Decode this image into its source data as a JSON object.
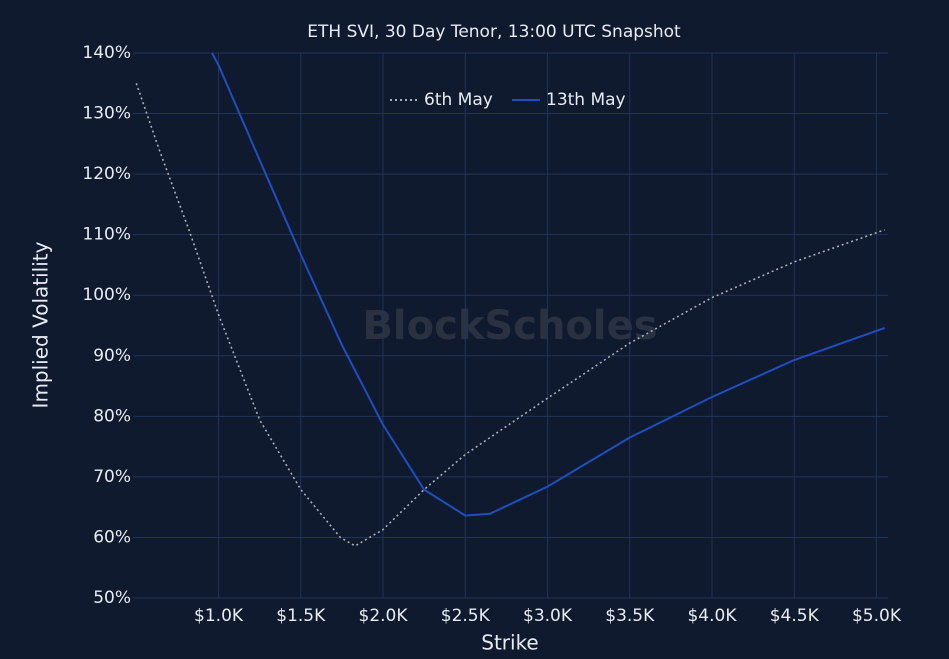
{
  "chart_data": {
    "type": "line",
    "title": "ETH SVI, 30 Day Tenor, 13:00 UTC Snapshot",
    "watermark": "BlockScholes",
    "x_label": "Strike",
    "y_label": "Implied Volatility",
    "xlim": [
      480,
      5070
    ],
    "ylim": [
      50,
      140
    ],
    "xticks": [
      {
        "value": 1000,
        "label": "$1.0K"
      },
      {
        "value": 1500,
        "label": "$1.5K"
      },
      {
        "value": 2000,
        "label": "$2.0K"
      },
      {
        "value": 2500,
        "label": "$2.5K"
      },
      {
        "value": 3000,
        "label": "$3.0K"
      },
      {
        "value": 3500,
        "label": "$3.5K"
      },
      {
        "value": 4000,
        "label": "$4.0K"
      },
      {
        "value": 4500,
        "label": "$4.5K"
      },
      {
        "value": 5000,
        "label": "$5.0K"
      }
    ],
    "yticks": [
      {
        "value": 50,
        "label": "50%"
      },
      {
        "value": 60,
        "label": "60%"
      },
      {
        "value": 70,
        "label": "70%"
      },
      {
        "value": 80,
        "label": "80%"
      },
      {
        "value": 90,
        "label": "90%"
      },
      {
        "value": 100,
        "label": "100%"
      },
      {
        "value": 110,
        "label": "110%"
      },
      {
        "value": 120,
        "label": "120%"
      },
      {
        "value": 130,
        "label": "130%"
      },
      {
        "value": 140,
        "label": "140%"
      }
    ],
    "grid": true,
    "legend": "top",
    "series": [
      {
        "name": "6th May",
        "color": "#a9adb5",
        "dash": true,
        "x": [
          500,
          640,
          820,
          1000,
          1250,
          1500,
          1740,
          1830,
          2000,
          2250,
          2500,
          3000,
          3500,
          4000,
          4500,
          5050
        ],
        "values": [
          135,
          124,
          110.8,
          96.8,
          79.4,
          67.9,
          60,
          58.6,
          61.3,
          67.9,
          73.7,
          83,
          92.1,
          99.6,
          105.5,
          110.8
        ]
      },
      {
        "name": "13th May",
        "color": "#1f4fbf",
        "dash": false,
        "x": [
          960,
          1000,
          1250,
          1500,
          1750,
          2000,
          2250,
          2500,
          2650,
          3000,
          3500,
          4000,
          4500,
          5050
        ],
        "values": [
          140,
          138,
          122.3,
          106.7,
          91.8,
          78.6,
          67.9,
          63.6,
          63.9,
          68.4,
          76.5,
          83.2,
          89.3,
          94.6
        ]
      }
    ]
  }
}
